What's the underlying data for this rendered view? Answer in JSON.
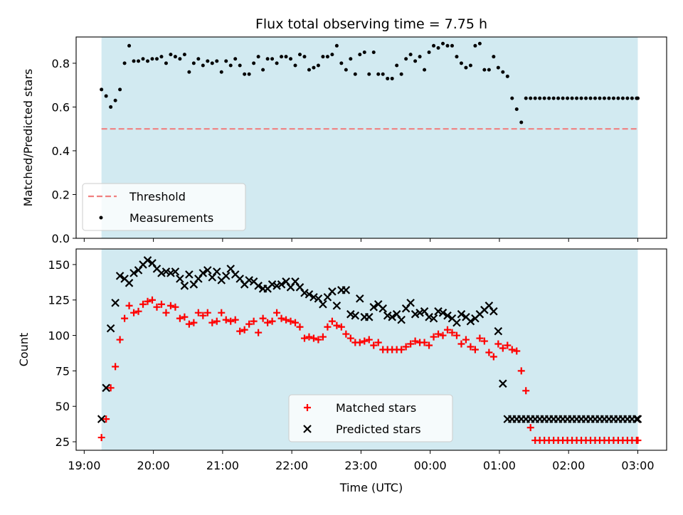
{
  "chart_data": [
    {
      "type": "scatter",
      "title": "Flux total observing time = 7.75 h",
      "ylabel": "Matched/Predicted stars",
      "ylim": [
        0,
        0.92
      ],
      "yticks": [
        0.0,
        0.2,
        0.4,
        0.6,
        0.8
      ],
      "ytick_labels": [
        "0.0",
        "0.2",
        "0.4",
        "0.6",
        "0.8"
      ],
      "shaded_span": [
        "19:15",
        "03:00"
      ],
      "shade_color": "#add8e6",
      "threshold": {
        "name": "Threshold",
        "value": 0.5,
        "color": "#f08080",
        "style": "dashed"
      },
      "legend_location": "lower left",
      "series": [
        {
          "name": "Measurements",
          "marker": "dot",
          "color": "#000000",
          "x": [
            "19:15",
            "19:19",
            "19:23",
            "19:27",
            "19:31",
            "19:35",
            "19:39",
            "19:43",
            "19:47",
            "19:51",
            "19:55",
            "19:59",
            "20:03",
            "20:07",
            "20:11",
            "20:15",
            "20:19",
            "20:23",
            "20:27",
            "20:31",
            "20:35",
            "20:39",
            "20:43",
            "20:47",
            "20:51",
            "20:55",
            "20:59",
            "21:03",
            "21:07",
            "21:11",
            "21:15",
            "21:19",
            "21:23",
            "21:27",
            "21:31",
            "21:35",
            "21:39",
            "21:43",
            "21:47",
            "21:51",
            "21:55",
            "21:59",
            "22:03",
            "22:07",
            "22:11",
            "22:15",
            "22:19",
            "22:23",
            "22:27",
            "22:31",
            "22:35",
            "22:39",
            "22:43",
            "22:47",
            "22:51",
            "22:55",
            "22:59",
            "23:03",
            "23:07",
            "23:11",
            "23:15",
            "23:19",
            "23:23",
            "23:27",
            "23:31",
            "23:35",
            "23:39",
            "23:43",
            "23:47",
            "23:51",
            "23:55",
            "23:59",
            "00:03",
            "00:07",
            "00:11",
            "00:15",
            "00:19",
            "00:23",
            "00:27",
            "00:31",
            "00:35",
            "00:39",
            "00:43",
            "00:47",
            "00:51",
            "00:55",
            "00:59",
            "01:03",
            "01:07",
            "01:11",
            "01:15",
            "01:19",
            "01:23",
            "01:27",
            "01:31",
            "01:35",
            "01:39",
            "01:43",
            "01:47",
            "01:51",
            "01:55",
            "01:59",
            "02:03",
            "02:07",
            "02:11",
            "02:15",
            "02:19",
            "02:23",
            "02:27",
            "02:31",
            "02:35",
            "02:39",
            "02:43",
            "02:47",
            "02:51",
            "02:55",
            "02:59",
            "03:00"
          ],
          "y": [
            0.68,
            0.65,
            0.6,
            0.63,
            0.68,
            0.8,
            0.88,
            0.81,
            0.81,
            0.82,
            0.81,
            0.82,
            0.82,
            0.83,
            0.8,
            0.84,
            0.83,
            0.82,
            0.84,
            0.76,
            0.8,
            0.82,
            0.79,
            0.81,
            0.8,
            0.81,
            0.76,
            0.81,
            0.79,
            0.82,
            0.79,
            0.75,
            0.75,
            0.8,
            0.83,
            0.77,
            0.82,
            0.82,
            0.8,
            0.83,
            0.83,
            0.82,
            0.79,
            0.84,
            0.83,
            0.77,
            0.78,
            0.79,
            0.83,
            0.83,
            0.84,
            0.88,
            0.8,
            0.77,
            0.82,
            0.75,
            0.84,
            0.85,
            0.75,
            0.85,
            0.75,
            0.75,
            0.73,
            0.73,
            0.79,
            0.75,
            0.82,
            0.84,
            0.81,
            0.83,
            0.77,
            0.85,
            0.88,
            0.87,
            0.89,
            0.88,
            0.88,
            0.83,
            0.8,
            0.78,
            0.79,
            0.88,
            0.89,
            0.77,
            0.77,
            0.83,
            0.78,
            0.76,
            0.74,
            0.64,
            0.59,
            0.53,
            0.64,
            0.64,
            0.64,
            0.64,
            0.64,
            0.64,
            0.64,
            0.64,
            0.64,
            0.64,
            0.64,
            0.64,
            0.64,
            0.64,
            0.64,
            0.64,
            0.64,
            0.64,
            0.64,
            0.64,
            0.64,
            0.64,
            0.64,
            0.64,
            0.64,
            0.64
          ]
        }
      ]
    },
    {
      "type": "scatter",
      "xlabel": "Time (UTC)",
      "ylabel": "Count",
      "ylim": [
        19,
        161
      ],
      "yticks": [
        25,
        50,
        75,
        100,
        125,
        150
      ],
      "ytick_labels": [
        "25",
        "50",
        "75",
        "100",
        "125",
        "150"
      ],
      "xticks": [
        "19:00",
        "20:00",
        "21:00",
        "22:00",
        "23:00",
        "00:00",
        "01:00",
        "02:00",
        "03:00"
      ],
      "xlim": [
        "18:53",
        "03:25"
      ],
      "shaded_span": [
        "19:15",
        "03:00"
      ],
      "shade_color": "#add8e6",
      "legend_location": "lower center",
      "series": [
        {
          "name": "Matched stars",
          "marker": "+",
          "color": "#ff0000",
          "x": [
            "19:15",
            "19:19",
            "19:23",
            "19:27",
            "19:31",
            "19:35",
            "19:39",
            "19:43",
            "19:47",
            "19:51",
            "19:55",
            "19:59",
            "20:03",
            "20:07",
            "20:11",
            "20:15",
            "20:19",
            "20:23",
            "20:27",
            "20:31",
            "20:35",
            "20:39",
            "20:43",
            "20:47",
            "20:51",
            "20:55",
            "20:59",
            "21:03",
            "21:07",
            "21:11",
            "21:15",
            "21:19",
            "21:23",
            "21:27",
            "21:31",
            "21:35",
            "21:39",
            "21:43",
            "21:47",
            "21:51",
            "21:55",
            "21:59",
            "22:03",
            "22:07",
            "22:11",
            "22:15",
            "22:19",
            "22:23",
            "22:27",
            "22:31",
            "22:35",
            "22:39",
            "22:43",
            "22:47",
            "22:51",
            "22:55",
            "22:59",
            "23:03",
            "23:07",
            "23:11",
            "23:15",
            "23:19",
            "23:23",
            "23:27",
            "23:31",
            "23:35",
            "23:39",
            "23:43",
            "23:47",
            "23:51",
            "23:55",
            "23:59",
            "00:03",
            "00:07",
            "00:11",
            "00:15",
            "00:19",
            "00:23",
            "00:27",
            "00:31",
            "00:35",
            "00:39",
            "00:43",
            "00:47",
            "00:51",
            "00:55",
            "00:59",
            "01:03",
            "01:07",
            "01:11",
            "01:15",
            "01:19",
            "01:23",
            "01:27",
            "01:31",
            "01:35",
            "01:39",
            "01:43",
            "01:47",
            "01:51",
            "01:55",
            "01:59",
            "02:03",
            "02:07",
            "02:11",
            "02:15",
            "02:19",
            "02:23",
            "02:27",
            "02:31",
            "02:35",
            "02:39",
            "02:43",
            "02:47",
            "02:51",
            "02:55",
            "02:59",
            "03:00"
          ],
          "y": [
            28,
            41,
            63,
            78,
            97,
            112,
            121,
            116,
            117,
            122,
            124,
            125,
            120,
            122,
            116,
            121,
            120,
            112,
            113,
            108,
            109,
            116,
            114,
            116,
            109,
            110,
            116,
            111,
            110,
            111,
            103,
            104,
            108,
            110,
            102,
            112,
            109,
            110,
            116,
            112,
            111,
            110,
            109,
            106,
            98,
            99,
            98,
            97,
            99,
            106,
            110,
            107,
            106,
            101,
            98,
            95,
            95,
            96,
            97,
            93,
            95,
            90,
            90,
            90,
            90,
            90,
            92,
            94,
            96,
            95,
            95,
            93,
            99,
            101,
            100,
            104,
            102,
            100,
            94,
            97,
            92,
            90,
            98,
            96,
            88,
            85,
            94,
            91,
            93,
            90,
            89,
            75,
            61,
            35,
            26,
            26,
            26,
            26,
            26,
            26,
            26,
            26,
            26,
            26,
            26,
            26,
            26,
            26,
            26,
            26,
            26,
            26,
            26,
            26,
            26,
            26,
            26,
            26
          ]
        },
        {
          "name": "Predicted stars",
          "marker": "x",
          "color": "#000000",
          "x": [
            "19:15",
            "19:19",
            "19:23",
            "19:27",
            "19:31",
            "19:35",
            "19:39",
            "19:43",
            "19:47",
            "19:51",
            "19:55",
            "19:59",
            "20:03",
            "20:07",
            "20:11",
            "20:15",
            "20:19",
            "20:23",
            "20:27",
            "20:31",
            "20:35",
            "20:39",
            "20:43",
            "20:47",
            "20:51",
            "20:55",
            "20:59",
            "21:03",
            "21:07",
            "21:11",
            "21:15",
            "21:19",
            "21:23",
            "21:27",
            "21:31",
            "21:35",
            "21:39",
            "21:43",
            "21:47",
            "21:51",
            "21:55",
            "21:59",
            "22:03",
            "22:07",
            "22:11",
            "22:15",
            "22:19",
            "22:23",
            "22:27",
            "22:31",
            "22:35",
            "22:39",
            "22:43",
            "22:47",
            "22:51",
            "22:55",
            "22:59",
            "23:03",
            "23:07",
            "23:11",
            "23:15",
            "23:19",
            "23:23",
            "23:27",
            "23:31",
            "23:35",
            "23:39",
            "23:43",
            "23:47",
            "23:51",
            "23:55",
            "23:59",
            "00:03",
            "00:07",
            "00:11",
            "00:15",
            "00:19",
            "00:23",
            "00:27",
            "00:31",
            "00:35",
            "00:39",
            "00:43",
            "00:47",
            "00:51",
            "00:55",
            "00:59",
            "01:03",
            "01:07",
            "01:11",
            "01:15",
            "01:19",
            "01:23",
            "01:27",
            "01:31",
            "01:35",
            "01:39",
            "01:43",
            "01:47",
            "01:51",
            "01:55",
            "01:59",
            "02:03",
            "02:07",
            "02:11",
            "02:15",
            "02:19",
            "02:23",
            "02:27",
            "02:31",
            "02:35",
            "02:39",
            "02:43",
            "02:47",
            "02:51",
            "02:55",
            "02:59",
            "03:00"
          ],
          "y": [
            41,
            63,
            105,
            123,
            142,
            140,
            137,
            144,
            146,
            150,
            153,
            151,
            147,
            144,
            145,
            144,
            145,
            140,
            135,
            143,
            136,
            140,
            144,
            146,
            141,
            145,
            139,
            142,
            147,
            143,
            140,
            136,
            139,
            138,
            135,
            133,
            133,
            136,
            135,
            136,
            138,
            134,
            138,
            134,
            130,
            129,
            127,
            126,
            122,
            127,
            131,
            121,
            132,
            132,
            115,
            114,
            126,
            113,
            113,
            120,
            122,
            119,
            114,
            113,
            115,
            111,
            119,
            123,
            115,
            116,
            117,
            113,
            112,
            117,
            116,
            114,
            112,
            109,
            115,
            113,
            110,
            112,
            115,
            118,
            121,
            117,
            103,
            66,
            41,
            41,
            41,
            41,
            41,
            41,
            41,
            41,
            41,
            41,
            41,
            41,
            41,
            41,
            41,
            41,
            41,
            41,
            41,
            41,
            41,
            41,
            41,
            41,
            41,
            41,
            41,
            41,
            41,
            41
          ]
        }
      ]
    }
  ]
}
